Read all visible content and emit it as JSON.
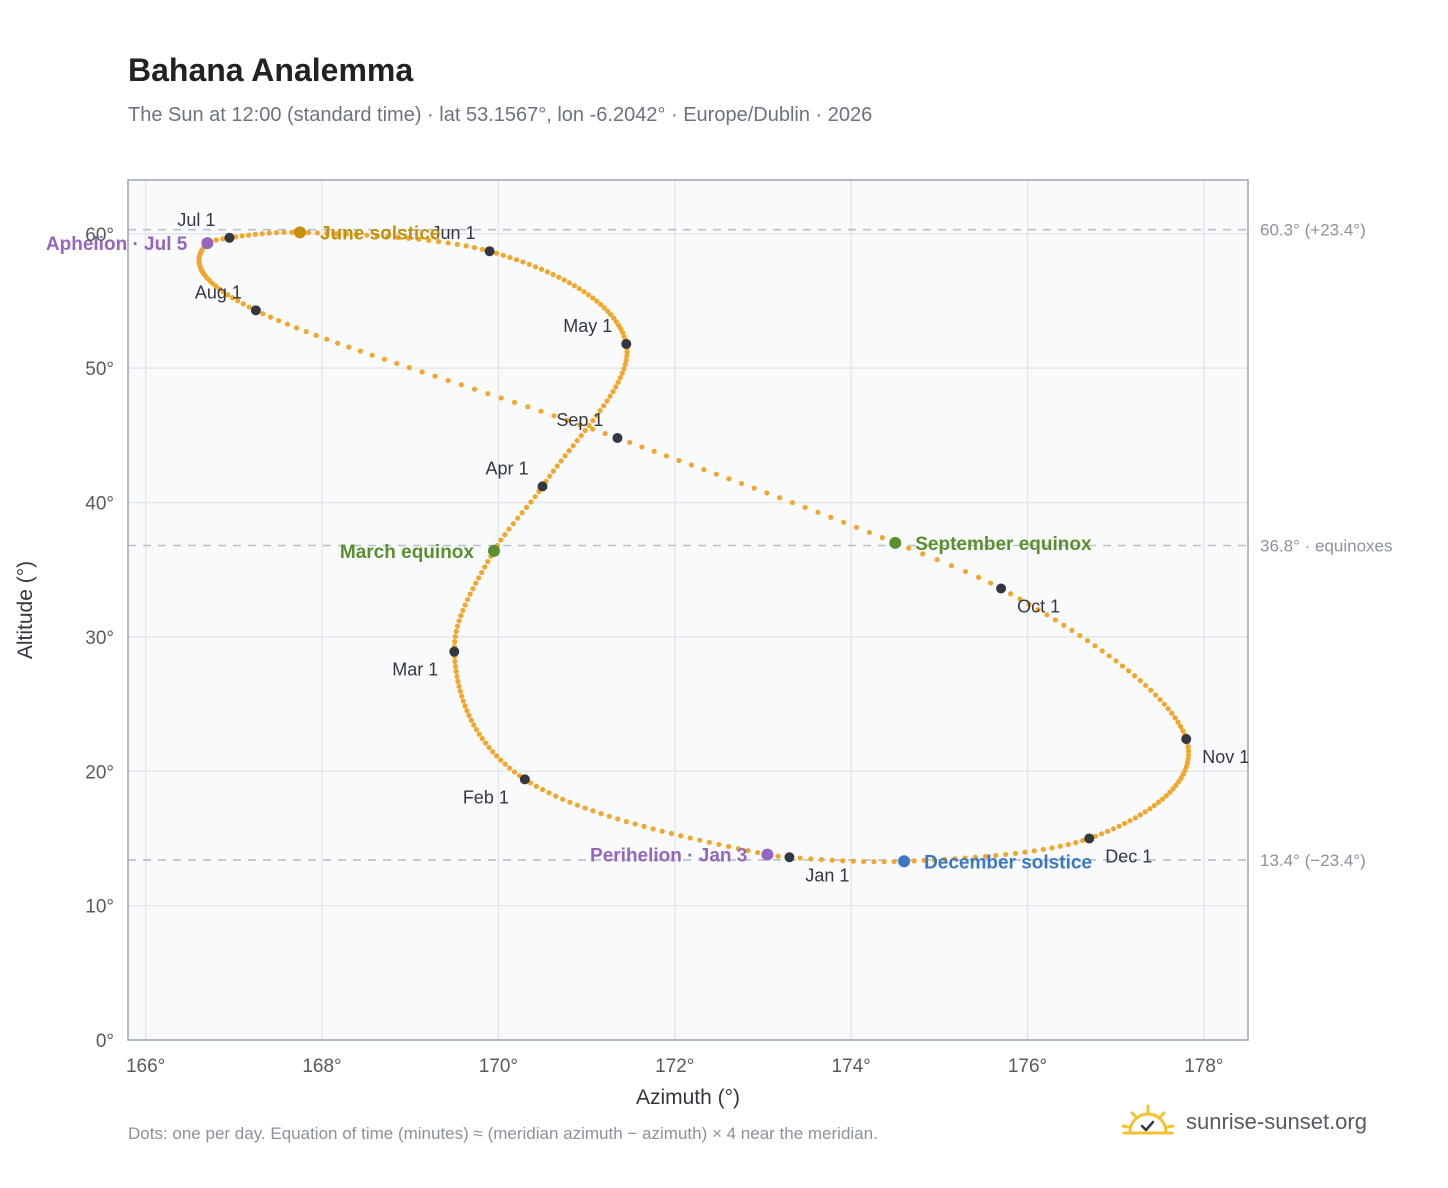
{
  "header": {
    "title": "Bahana Analemma",
    "subtitle": "The Sun at 12:00 (standard time) · lat 53.1567°, lon -6.2042° · Europe/Dublin · 2026"
  },
  "footer": {
    "note": "Dots: one per day. Equation of time (minutes) ≈ (meridian azimuth − azimuth) × 4 near the meridian.",
    "brand": "sunrise-sunset.org"
  },
  "chart_data": {
    "type": "scatter",
    "xlabel": "Azimuth (°)",
    "ylabel": "Altitude (°)",
    "xlim": [
      165.8,
      178.5
    ],
    "ylim": [
      0,
      64
    ],
    "xticks": [
      166,
      168,
      170,
      172,
      174,
      176,
      178
    ],
    "yticks": [
      0,
      10,
      20,
      30,
      40,
      50,
      60
    ],
    "tick_suffix": "°",
    "grid": true,
    "colors": {
      "path": "#f4a62a",
      "month_marker": "#333840",
      "solstice_june": "#c8900a",
      "solstice_december": "#3b78c3",
      "equinox": "#5a8f2e",
      "apsis": "#9467bd",
      "reference_line": "#b8c0c8",
      "plot_background": "#f8fafc",
      "gridline": "#e4e8ed",
      "frame": "#9aa4b2"
    },
    "reference_lines": [
      {
        "y": 60.3,
        "label": "60.3° (+23.4°)"
      },
      {
        "y": 36.8,
        "label": "36.8° · equinoxes"
      },
      {
        "y": 13.4,
        "label": "13.4° (−23.4°)"
      }
    ],
    "key_points": [
      {
        "date": "Jan 1",
        "x": 173.3,
        "y": 13.6
      },
      {
        "date": "Jan 3",
        "x": 173.05,
        "y": 13.8
      },
      {
        "date": "Feb 1",
        "x": 170.3,
        "y": 19.4
      },
      {
        "date": "Mar 1",
        "x": 169.5,
        "y": 28.9
      },
      {
        "date": "Mar 20",
        "x": 169.95,
        "y": 36.4
      },
      {
        "date": "Apr 1",
        "x": 170.5,
        "y": 41.2
      },
      {
        "date": "May 1",
        "x": 171.45,
        "y": 51.8
      },
      {
        "date": "Jun 1",
        "x": 169.9,
        "y": 58.7
      },
      {
        "date": "Jun 21",
        "x": 167.75,
        "y": 60.1
      },
      {
        "date": "Jul 1",
        "x": 166.95,
        "y": 59.7
      },
      {
        "date": "Jul 5",
        "x": 166.7,
        "y": 59.3
      },
      {
        "date": "Aug 1",
        "x": 167.25,
        "y": 54.3
      },
      {
        "date": "Sep 1",
        "x": 171.35,
        "y": 44.8
      },
      {
        "date": "Sep 23",
        "x": 174.5,
        "y": 37.0
      },
      {
        "date": "Oct 1",
        "x": 175.7,
        "y": 33.6
      },
      {
        "date": "Nov 1",
        "x": 177.8,
        "y": 22.4
      },
      {
        "date": "Dec 1",
        "x": 176.7,
        "y": 15.0
      },
      {
        "date": "Dec 21",
        "x": 174.6,
        "y": 13.3
      }
    ],
    "month_markers": [
      {
        "label": "Jan 1",
        "x": 173.3,
        "y": 13.6,
        "label_pos": "below-right"
      },
      {
        "label": "Feb 1",
        "x": 170.3,
        "y": 19.4,
        "label_pos": "below-left"
      },
      {
        "label": "Mar 1",
        "x": 169.5,
        "y": 28.9,
        "label_pos": "below-left"
      },
      {
        "label": "Apr 1",
        "x": 170.5,
        "y": 41.2,
        "label_pos": "above-left"
      },
      {
        "label": "May 1",
        "x": 171.45,
        "y": 51.8,
        "label_pos": "above-left"
      },
      {
        "label": "Jun 1",
        "x": 169.9,
        "y": 58.7,
        "label_pos": "above-left"
      },
      {
        "label": "Jul 1",
        "x": 166.95,
        "y": 59.7,
        "label_pos": "above-left"
      },
      {
        "label": "Aug 1",
        "x": 167.25,
        "y": 54.3,
        "label_pos": "above-left"
      },
      {
        "label": "Sep 1",
        "x": 171.35,
        "y": 44.8,
        "label_pos": "above-left"
      },
      {
        "label": "Oct 1",
        "x": 175.7,
        "y": 33.6,
        "label_pos": "below-right"
      },
      {
        "label": "Nov 1",
        "x": 177.8,
        "y": 22.4,
        "label_pos": "below-right"
      },
      {
        "label": "Dec 1",
        "x": 176.7,
        "y": 15.0,
        "label_pos": "below-right"
      }
    ],
    "events": [
      {
        "label": "June solstice",
        "x": 167.75,
        "y": 60.1,
        "kind": "solstice_june",
        "label_pos": "right"
      },
      {
        "label": "December solstice",
        "x": 174.6,
        "y": 13.3,
        "kind": "solstice_december",
        "label_pos": "right"
      },
      {
        "label": "March equinox",
        "x": 169.95,
        "y": 36.4,
        "kind": "equinox",
        "label_pos": "left"
      },
      {
        "label": "September equinox",
        "x": 174.5,
        "y": 37.0,
        "kind": "equinox",
        "label_pos": "right"
      },
      {
        "label": "Aphelion · Jul 5",
        "x": 166.7,
        "y": 59.3,
        "kind": "apsis",
        "label_pos": "left"
      },
      {
        "label": "Perihelion · Jan 3",
        "x": 173.05,
        "y": 13.8,
        "kind": "apsis",
        "label_pos": "left"
      }
    ]
  }
}
